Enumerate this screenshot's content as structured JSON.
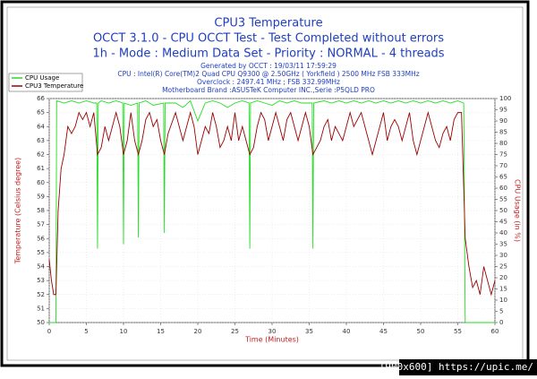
{
  "chart_data": {
    "type": "line",
    "title": "CPU3 Temperature",
    "subtitle": [
      "OCCT 3.1.0 - CPU OCCT Test - Test Completed without errors",
      "1h - Mode : Medium Data Set - Priority : NORMAL - 4 threads"
    ],
    "info": [
      "Generated by OCCT : 19/03/11 17:59:29",
      "CPU : Intel(R) Core(TM)2 Quad CPU Q9300 @ 2.50GHz ( Yorkfield ) 2500 MHz FSB 333MHz",
      "Overclock : 2497.41 MHz ; FSB 332.99MHz",
      "Motherboard Brand :ASUSTeK Computer INC.,Serie :P5QLD PRO"
    ],
    "x_label": "Time (Minutes)",
    "y_label": "Temperature (Celsius degree)",
    "y2_label": "CPU Usage (in %)",
    "xlim": [
      0,
      60
    ],
    "xticks": [
      0,
      5,
      10,
      15,
      20,
      25,
      30,
      35,
      40,
      45,
      50,
      55,
      60
    ],
    "ylim": [
      50,
      66
    ],
    "yticks": [
      50,
      51,
      52,
      53,
      54,
      55,
      56,
      57,
      58,
      59,
      60,
      61,
      62,
      63,
      64,
      65,
      66
    ],
    "y2lim": [
      0,
      100
    ],
    "y2ticks": [
      0,
      5,
      10,
      15,
      20,
      25,
      30,
      35,
      40,
      45,
      50,
      55,
      60,
      65,
      70,
      75,
      80,
      85,
      90,
      95,
      100
    ],
    "grid": true,
    "legend": "top-left",
    "series": [
      {
        "name": "CPU Usage",
        "color": "#22dd22",
        "axis": "y2",
        "x": [
          0,
          0.9,
          1,
          2,
          3,
          4,
          5,
          6,
          6.4,
          6.5,
          6.6,
          7,
          8,
          9,
          9.9,
          10,
          10.1,
          11,
          11.9,
          12,
          12.1,
          13,
          14,
          15.4,
          15.5,
          15.6,
          17,
          18,
          19,
          20,
          21,
          22,
          23,
          24,
          25,
          26,
          26.9,
          27,
          27.1,
          28,
          29,
          30,
          31,
          32,
          33,
          34,
          35.4,
          35.5,
          35.6,
          37,
          38,
          39,
          40,
          41,
          42,
          43,
          44,
          45,
          46,
          47,
          48,
          49,
          50,
          51,
          52,
          53,
          54,
          55,
          55.8,
          56,
          58,
          60
        ],
        "values": [
          0,
          0,
          99,
          98,
          99,
          98,
          99,
          98,
          98,
          33,
          98,
          99,
          98,
          99,
          98,
          35,
          98,
          97,
          98,
          38,
          98,
          99,
          97,
          98,
          40,
          98,
          98,
          96,
          99,
          90,
          98,
          99,
          98,
          96,
          98,
          99,
          98,
          33,
          98,
          99,
          98,
          97,
          99,
          98,
          99,
          98,
          98,
          33,
          98,
          99,
          98,
          99,
          98,
          99,
          98,
          99,
          98,
          99,
          98,
          99,
          98,
          99,
          98,
          99,
          98,
          99,
          98,
          99,
          98,
          0,
          0,
          0
        ]
      },
      {
        "name": "CPU3 Temperature",
        "color": "#990000",
        "axis": "y",
        "x": [
          0,
          0.3,
          0.6,
          0.9,
          1.2,
          1.6,
          2,
          2.5,
          3,
          3.5,
          4,
          4.5,
          5,
          5.5,
          6,
          6.5,
          7,
          7.5,
          8,
          8.5,
          9,
          9.5,
          10,
          10.5,
          11,
          11.5,
          12,
          12.5,
          13,
          13.5,
          14,
          14.5,
          15,
          15.5,
          16,
          17,
          17.5,
          18,
          18.5,
          19,
          19.5,
          20,
          20.5,
          21,
          21.5,
          22,
          22.5,
          23,
          23.5,
          24,
          24.5,
          25,
          25.5,
          26,
          26.5,
          27,
          27.5,
          28,
          28.5,
          29,
          29.5,
          30,
          30.5,
          31,
          31.5,
          32,
          32.5,
          33,
          33.5,
          34,
          34.5,
          35,
          35.5,
          36,
          36.5,
          37,
          37.5,
          38,
          38.5,
          39,
          39.5,
          40,
          40.5,
          41,
          41.5,
          42,
          42.5,
          43,
          43.5,
          44,
          44.5,
          45,
          45.5,
          46,
          46.5,
          47,
          47.5,
          48,
          48.5,
          49,
          49.5,
          50,
          50.5,
          51,
          51.5,
          52,
          52.5,
          53,
          53.5,
          54,
          54.5,
          55,
          55.5,
          56,
          56.5,
          57,
          57.5,
          58,
          58.5,
          59,
          59.5,
          60
        ],
        "values": [
          54.5,
          53,
          52,
          52,
          58,
          61,
          62,
          64,
          63.5,
          64,
          65,
          64.5,
          65,
          64,
          65,
          62,
          62.5,
          64,
          63,
          64,
          65,
          64,
          62,
          63,
          65,
          63,
          62,
          63,
          64.5,
          65,
          64,
          64.5,
          63,
          62,
          63.5,
          65,
          64,
          63,
          64,
          65,
          64,
          62,
          63,
          64,
          63.5,
          65,
          64,
          62.5,
          63,
          64,
          63,
          65,
          63,
          64,
          63,
          62,
          62.5,
          64,
          65,
          64.5,
          63,
          64,
          65,
          64,
          63,
          64.5,
          65,
          64,
          63,
          64,
          65,
          64,
          62,
          62.5,
          63,
          64,
          64.5,
          63,
          64,
          63.5,
          63,
          64,
          65,
          64,
          64.5,
          65,
          64,
          63,
          62,
          63,
          64,
          65,
          63,
          64,
          64.5,
          64,
          63,
          64,
          65,
          63,
          62,
          63,
          64,
          65,
          64,
          63,
          62.5,
          63.5,
          64,
          63,
          64.5,
          65,
          65,
          56,
          54,
          52.5,
          53,
          52,
          54,
          53,
          52,
          53
        ]
      }
    ]
  },
  "watermark": "[900x600] https://upic.me/"
}
